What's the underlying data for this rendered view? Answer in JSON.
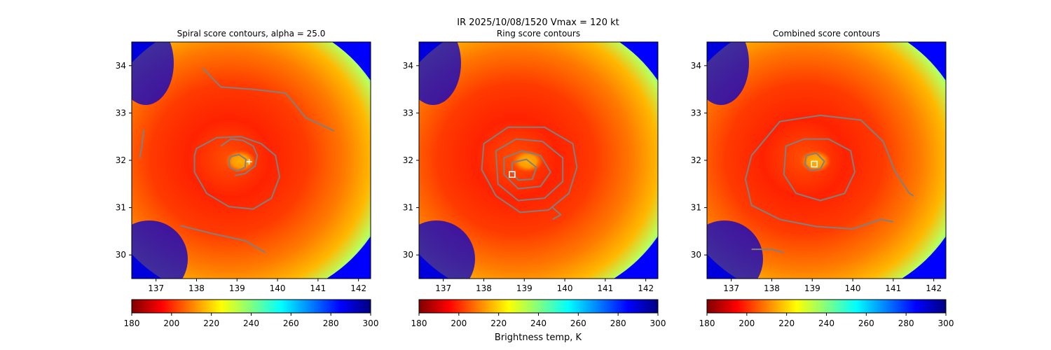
{
  "figure": {
    "suptitle": "IR  2025/10/08/1520    Vmax = 120 kt",
    "colorbar_label": "Brightness temp, K"
  },
  "chart_data": [
    {
      "type": "heatmap",
      "title": "Spiral score contours, alpha = 25.0",
      "xlim": [
        136.4,
        142.3
      ],
      "ylim": [
        29.5,
        34.5
      ],
      "xticks": [
        137,
        138,
        139,
        140,
        141,
        142
      ],
      "yticks": [
        30,
        31,
        32,
        33,
        34
      ],
      "colormap": "jet_r",
      "colorbar": {
        "range": [
          180,
          300
        ],
        "ticks": [
          180,
          200,
          220,
          240,
          260,
          280,
          300
        ]
      },
      "storm_center": [
        139.0,
        31.95
      ],
      "best_track_marker": {
        "lon": 139.3,
        "lat": 31.97,
        "shape": "plus"
      },
      "contours": [
        {
          "points": [
            [
              138.0,
              32.25
            ],
            [
              138.5,
              32.48
            ],
            [
              139.1,
              32.5
            ],
            [
              139.6,
              32.35
            ],
            [
              139.95,
              32.1
            ],
            [
              140.05,
              31.65
            ],
            [
              139.85,
              31.2
            ],
            [
              139.4,
              30.97
            ],
            [
              138.8,
              31.02
            ],
            [
              138.25,
              31.3
            ],
            [
              137.95,
              31.75
            ],
            [
              137.95,
              32.1
            ],
            [
              138.0,
              32.25
            ]
          ],
          "closed": true
        },
        {
          "points": [
            [
              138.85,
              32.08
            ],
            [
              139.05,
              32.12
            ],
            [
              139.22,
              32.02
            ],
            [
              139.2,
              31.85
            ],
            [
              139.0,
              31.77
            ],
            [
              138.82,
              31.85
            ],
            [
              138.8,
              32.0
            ],
            [
              138.85,
              32.08
            ]
          ],
          "closed": true
        },
        {
          "points": [
            [
              138.6,
              32.3
            ],
            [
              138.85,
              32.45
            ],
            [
              139.15,
              32.42
            ],
            [
              139.4,
              32.3
            ],
            [
              139.5,
              32.1
            ],
            [
              139.45,
              31.88
            ],
            [
              139.2,
              31.72
            ],
            [
              138.95,
              31.68
            ]
          ],
          "closed": false
        },
        {
          "points": [
            [
              138.15,
              33.95
            ],
            [
              138.6,
              33.55
            ],
            [
              139.4,
              33.5
            ],
            [
              140.2,
              33.42
            ],
            [
              140.7,
              32.9
            ],
            [
              141.4,
              32.62
            ]
          ],
          "closed": false
        },
        {
          "points": [
            [
              137.6,
              30.62
            ],
            [
              138.4,
              30.45
            ],
            [
              139.2,
              30.3
            ],
            [
              139.7,
              30.05
            ]
          ],
          "closed": false
        },
        {
          "points": [
            [
              136.7,
              32.65
            ],
            [
              136.65,
              32.3
            ],
            [
              136.6,
              32.05
            ]
          ],
          "closed": false
        }
      ]
    },
    {
      "type": "heatmap",
      "title": "Ring score contours",
      "xlim": [
        136.4,
        142.3
      ],
      "ylim": [
        29.5,
        34.5
      ],
      "xticks": [
        137,
        138,
        139,
        140,
        141,
        142
      ],
      "yticks": [
        30,
        31,
        32,
        33,
        34
      ],
      "colormap": "jet_r",
      "colorbar": {
        "range": [
          180,
          300
        ],
        "ticks": [
          180,
          200,
          220,
          240,
          260,
          280,
          300
        ]
      },
      "storm_center": [
        139.0,
        31.95
      ],
      "best_track_marker": {
        "lon": 138.7,
        "lat": 31.7,
        "shape": "square"
      },
      "contours": [
        {
          "points": [
            [
              138.0,
              32.35
            ],
            [
              138.6,
              32.7
            ],
            [
              139.5,
              32.7
            ],
            [
              140.2,
              32.35
            ],
            [
              140.3,
              31.85
            ],
            [
              140.1,
              31.3
            ],
            [
              139.6,
              30.95
            ],
            [
              138.9,
              30.9
            ],
            [
              138.3,
              31.25
            ],
            [
              137.95,
              31.8
            ],
            [
              138.0,
              32.35
            ]
          ],
          "closed": true
        },
        {
          "points": [
            [
              138.3,
              32.2
            ],
            [
              138.8,
              32.45
            ],
            [
              139.45,
              32.4
            ],
            [
              139.95,
              32.05
            ],
            [
              139.95,
              31.55
            ],
            [
              139.5,
              31.2
            ],
            [
              138.85,
              31.15
            ],
            [
              138.35,
              31.5
            ],
            [
              138.3,
              32.2
            ]
          ],
          "closed": true
        },
        {
          "points": [
            [
              138.5,
              32.05
            ],
            [
              138.95,
              32.2
            ],
            [
              139.4,
              32.1
            ],
            [
              139.65,
              31.75
            ],
            [
              139.4,
              31.45
            ],
            [
              138.85,
              31.4
            ],
            [
              138.5,
              31.7
            ],
            [
              138.5,
              32.05
            ]
          ],
          "closed": true
        },
        {
          "points": [
            [
              138.7,
              31.95
            ],
            [
              139.05,
              32.02
            ],
            [
              139.3,
              31.85
            ],
            [
              139.2,
              31.6
            ],
            [
              138.85,
              31.58
            ],
            [
              138.7,
              31.75
            ],
            [
              138.7,
              31.95
            ]
          ],
          "closed": true
        },
        {
          "points": [
            [
              139.7,
              31.0
            ],
            [
              139.9,
              30.85
            ],
            [
              139.7,
              30.75
            ]
          ],
          "closed": false
        }
      ]
    },
    {
      "type": "heatmap",
      "title": "Combined score contours",
      "xlim": [
        136.4,
        142.3
      ],
      "ylim": [
        29.5,
        34.5
      ],
      "xticks": [
        137,
        138,
        139,
        140,
        141,
        142
      ],
      "yticks": [
        30,
        31,
        32,
        33,
        34
      ],
      "colormap": "jet_r",
      "colorbar": {
        "range": [
          180,
          300
        ],
        "ticks": [
          180,
          200,
          220,
          240,
          260,
          280,
          300
        ]
      },
      "storm_center": [
        139.0,
        31.95
      ],
      "best_track_marker": {
        "lon": 139.05,
        "lat": 31.92,
        "shape": "square"
      },
      "contours": [
        {
          "points": [
            [
              137.5,
              32.1
            ],
            [
              138.2,
              32.82
            ],
            [
              139.2,
              32.95
            ],
            [
              140.2,
              32.85
            ],
            [
              140.75,
              32.4
            ],
            [
              141.05,
              31.75
            ],
            [
              141.4,
              31.3
            ],
            [
              141.5,
              31.25
            ]
          ],
          "closed": false
        },
        {
          "points": [
            [
              137.5,
              32.1
            ],
            [
              137.35,
              31.6
            ],
            [
              137.5,
              31.05
            ],
            [
              138.2,
              30.75
            ],
            [
              139.1,
              30.6
            ],
            [
              140.0,
              30.55
            ],
            [
              140.7,
              30.75
            ],
            [
              141.0,
              30.7
            ]
          ],
          "closed": false
        },
        {
          "points": [
            [
              138.35,
              32.3
            ],
            [
              138.8,
              32.45
            ],
            [
              139.4,
              32.45
            ],
            [
              139.95,
              32.2
            ],
            [
              140.05,
              31.75
            ],
            [
              139.8,
              31.3
            ],
            [
              139.2,
              31.15
            ],
            [
              138.6,
              31.3
            ],
            [
              138.3,
              31.7
            ],
            [
              138.35,
              32.3
            ]
          ],
          "closed": true
        },
        {
          "points": [
            [
              138.85,
              32.1
            ],
            [
              139.1,
              32.15
            ],
            [
              139.3,
              31.98
            ],
            [
              139.2,
              31.82
            ],
            [
              138.95,
              31.78
            ],
            [
              138.82,
              31.92
            ],
            [
              138.85,
              32.1
            ]
          ],
          "closed": true
        },
        {
          "points": [
            [
              137.5,
              30.12
            ],
            [
              138.0,
              30.12
            ],
            [
              138.3,
              30.05
            ]
          ],
          "closed": false
        }
      ]
    }
  ]
}
